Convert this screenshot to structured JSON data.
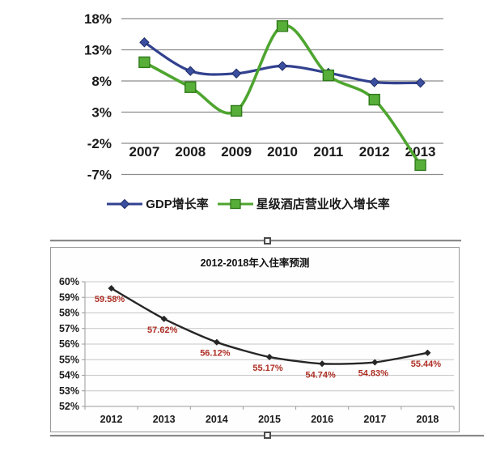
{
  "colors": {
    "gdp_line": "#32418f",
    "gdp_marker_fill": "#3b4fa0",
    "gdp_marker_stroke": "#1f2c66",
    "hotel_line": "#4ea52f",
    "hotel_marker_fill": "#57ae39",
    "hotel_marker_stroke": "#2f7a1a",
    "occupancy_line": "#262626",
    "occupancy_label": "#ae2e24",
    "gridline_top": "#8c8c8c",
    "gridline_bottom": "#c6c6c6",
    "axis_line_bottom": "#9a9a9a",
    "axis_text": "#1a1a1a",
    "frame_border": "#9a9a9a",
    "selection_line": "#8a8a8a",
    "selection_handle_border": "#4a4a4a"
  },
  "chart_data": [
    {
      "type": "line",
      "title": "",
      "categories": [
        "2007",
        "2008",
        "2009",
        "2010",
        "2011",
        "2012",
        "2013"
      ],
      "series": [
        {
          "name": "GDP增长率",
          "marker": "diamond",
          "color_key": "gdp_line",
          "values": [
            14.2,
            9.6,
            9.2,
            10.4,
            9.3,
            7.8,
            7.7
          ]
        },
        {
          "name": "星级酒店营业收入增长率",
          "marker": "square",
          "color_key": "hotel_line",
          "values": [
            11.0,
            7.0,
            3.2,
            16.8,
            8.9,
            5.0,
            -5.5
          ]
        }
      ],
      "ylim": [
        -7,
        18
      ],
      "yticks": [
        {
          "value": 18,
          "label": "18%"
        },
        {
          "value": 13,
          "label": "13%"
        },
        {
          "value": 8,
          "label": "8%"
        },
        {
          "value": 3,
          "label": "3%"
        },
        {
          "value": -2,
          "label": "-2%"
        },
        {
          "value": -7,
          "label": "-7%"
        }
      ],
      "grid": true,
      "legend_position": "bottom"
    },
    {
      "type": "line",
      "title": "2012-2018年入住率预测",
      "categories": [
        "2012",
        "2013",
        "2014",
        "2015",
        "2016",
        "2017",
        "2018"
      ],
      "series": [
        {
          "marker": "diamond",
          "color_key": "occupancy_line",
          "values": [
            59.58,
            57.62,
            56.12,
            55.17,
            54.74,
            54.83,
            55.44
          ]
        }
      ],
      "data_labels": [
        "59.58%",
        "57.62%",
        "56.12%",
        "55.17%",
        "54.74%",
        "54.83%",
        "55.44%"
      ],
      "ylim": [
        52,
        60
      ],
      "yticks": [
        {
          "value": 60,
          "label": "60%"
        },
        {
          "value": 59,
          "label": "59%"
        },
        {
          "value": 58,
          "label": "58%"
        },
        {
          "value": 57,
          "label": "57%"
        },
        {
          "value": 56,
          "label": "56%"
        },
        {
          "value": 55,
          "label": "55%"
        },
        {
          "value": 54,
          "label": "54%"
        },
        {
          "value": 53,
          "label": "53%"
        },
        {
          "value": 52,
          "label": "52%"
        }
      ],
      "grid": true,
      "legend_position": "none"
    }
  ]
}
